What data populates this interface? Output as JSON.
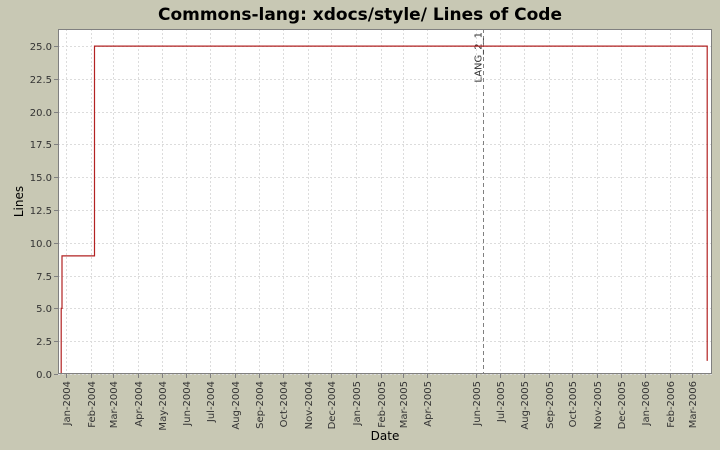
{
  "chart_data": {
    "type": "line",
    "title": "Commons-lang: xdocs/style/ Lines of Code",
    "xlabel": "Date",
    "ylabel": "Lines",
    "ylim": [
      0,
      26.3
    ],
    "xlim": [
      "2003-12-22",
      "2006-03-26"
    ],
    "y_ticks": [
      "0.0",
      "2.5",
      "5.0",
      "7.5",
      "10.0",
      "12.5",
      "15.0",
      "17.5",
      "20.0",
      "22.5",
      "25.0"
    ],
    "x_ticks": [
      {
        "label": "Jan-2004",
        "date": "2004-01-01"
      },
      {
        "label": "Feb-2004",
        "date": "2004-02-01"
      },
      {
        "label": "Mar-2004",
        "date": "2004-03-01"
      },
      {
        "label": "Apr-2004",
        "date": "2004-04-01"
      },
      {
        "label": "May-2004",
        "date": "2004-05-01"
      },
      {
        "label": "Jun-2004",
        "date": "2004-06-01"
      },
      {
        "label": "Jul-2004",
        "date": "2004-07-01"
      },
      {
        "label": "Aug-2004",
        "date": "2004-08-01"
      },
      {
        "label": "Sep-2004",
        "date": "2004-09-01"
      },
      {
        "label": "Oct-2004",
        "date": "2004-10-01"
      },
      {
        "label": "Nov-2004",
        "date": "2004-11-01"
      },
      {
        "label": "Dec-2004",
        "date": "2004-12-01"
      },
      {
        "label": "Jan-2005",
        "date": "2005-01-01"
      },
      {
        "label": "Feb-2005",
        "date": "2005-02-01"
      },
      {
        "label": "Mar-2005",
        "date": "2005-03-01"
      },
      {
        "label": "Apr-2005",
        "date": "2005-04-01"
      },
      {
        "label": "Jun-2005",
        "date": "2005-06-01"
      },
      {
        "label": "Jul-2005",
        "date": "2005-07-01"
      },
      {
        "label": "Aug-2005",
        "date": "2005-08-01"
      },
      {
        "label": "Sep-2005",
        "date": "2005-09-01"
      },
      {
        "label": "Oct-2005",
        "date": "2005-10-01"
      },
      {
        "label": "Nov-2005",
        "date": "2005-11-01"
      },
      {
        "label": "Dec-2005",
        "date": "2005-12-01"
      },
      {
        "label": "Jan-2006",
        "date": "2006-01-01"
      },
      {
        "label": "Feb-2006",
        "date": "2006-02-01"
      },
      {
        "label": "Mar-2006",
        "date": "2006-03-01"
      }
    ],
    "series": [
      {
        "color": "#b22222",
        "step": true,
        "points": [
          {
            "x": "2003-12-26",
            "y": 0
          },
          {
            "x": "2003-12-26",
            "y": 5
          },
          {
            "x": "2003-12-27",
            "y": 5
          },
          {
            "x": "2003-12-27",
            "y": 9
          },
          {
            "x": "2004-02-06",
            "y": 9
          },
          {
            "x": "2004-02-06",
            "y": 25
          },
          {
            "x": "2006-03-20",
            "y": 25
          },
          {
            "x": "2006-03-20",
            "y": 1
          }
        ]
      }
    ],
    "markers": [
      {
        "label": "LANG_2_1",
        "date": "2005-06-10"
      }
    ],
    "grid": true,
    "legend": "none",
    "colors": {
      "background": "#c8c8b4",
      "plot_background": "#ffffff",
      "grid": "#dcdcdc",
      "marker_line": "#808080"
    }
  }
}
